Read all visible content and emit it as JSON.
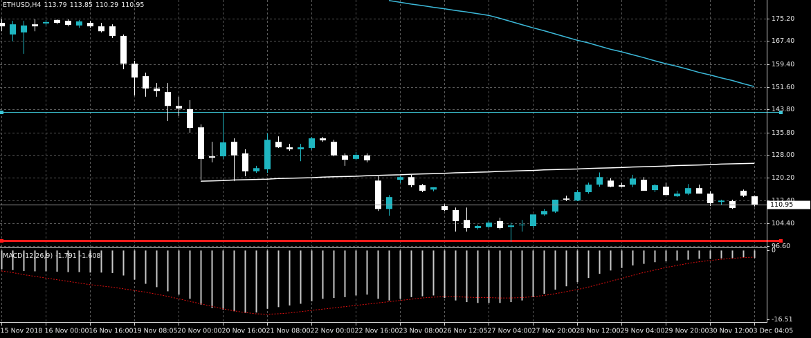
{
  "chart_data": [
    {
      "type": "candlestick",
      "title": "ETHUSD,H4",
      "categories": [
        "15 Nov 2018",
        null,
        null,
        null,
        "16 Nov 00:00",
        null,
        null,
        null,
        "16 Nov 16:00",
        null,
        null,
        null,
        "19 Nov 08:05",
        null,
        null,
        null,
        "20 Nov 00:00",
        null,
        null,
        null,
        "20 Nov 16:00",
        null,
        null,
        null,
        "21 Nov 08:00",
        null,
        null,
        null,
        "22 Nov 00:00",
        null,
        null,
        null,
        "22 Nov 16:00",
        null,
        null,
        null,
        "23 Nov 08:00",
        null,
        null,
        null,
        "26 Nov 12:05",
        null,
        null,
        null,
        "27 Nov 04:00",
        null,
        null,
        null,
        "27 Nov 20:00",
        null,
        null,
        null,
        "28 Nov 12:00",
        null,
        null,
        null,
        "29 Nov 04:00",
        null,
        null,
        null,
        "29 Nov 20:00",
        null,
        null,
        null,
        "30 Nov 12:00",
        null,
        null,
        null,
        "3 Dec 04:05"
      ],
      "open": [
        173.7,
        169.7,
        170.4,
        173.2,
        173.5,
        174.7,
        174.4,
        172.8,
        173.7,
        172.5,
        172.5,
        169.2,
        159.6,
        155.3,
        151.0,
        149.8,
        145.0,
        143.9,
        137.6,
        127.6,
        127.6,
        132.6,
        128.6,
        122.4,
        123.1,
        132.6,
        130.7,
        130.0,
        130.5,
        133.8,
        132.6,
        127.9,
        126.7,
        127.9,
        119.2,
        109.4,
        119.5,
        120.4,
        117.6,
        116.1,
        110.4,
        109.0,
        105.6,
        102.8,
        103.2,
        105.2,
        103.2,
        103.9,
        103.5,
        107.5,
        108.5,
        113.0,
        112.3,
        115.2,
        117.8,
        119.2,
        117.6,
        117.8,
        119.5,
        115.9,
        117.1,
        113.8,
        114.7,
        116.6,
        114.7,
        111.8,
        112.1,
        115.7,
        113.79
      ],
      "high": [
        174.9,
        174.4,
        174.4,
        174.9,
        174.7,
        174.9,
        174.9,
        174.7,
        174.4,
        173.7,
        173.2,
        169.7,
        160.6,
        156.5,
        152.9,
        152.9,
        148.2,
        147.0,
        138.6,
        132.6,
        142.7,
        133.8,
        130.0,
        124.3,
        135.5,
        134.5,
        131.9,
        131.9,
        134.3,
        134.3,
        133.3,
        128.6,
        129.1,
        128.6,
        120.7,
        114.2,
        120.7,
        121.2,
        118.0,
        116.9,
        111.1,
        109.9,
        109.9,
        104.0,
        105.2,
        106.4,
        104.7,
        105.6,
        107.5,
        109.4,
        112.6,
        114.0,
        115.9,
        118.5,
        122.0,
        120.0,
        118.5,
        121.2,
        120.4,
        118.0,
        118.5,
        115.7,
        118.0,
        117.8,
        115.5,
        112.6,
        112.6,
        116.1,
        113.85
      ],
      "low": [
        170.8,
        167.3,
        163.0,
        170.8,
        172.8,
        173.2,
        172.5,
        172.0,
        172.0,
        170.4,
        168.5,
        157.7,
        148.6,
        148.2,
        148.2,
        139.8,
        141.5,
        135.7,
        119.5,
        125.5,
        126.7,
        119.0,
        120.7,
        121.9,
        121.9,
        130.5,
        129.5,
        125.9,
        129.8,
        132.6,
        127.6,
        124.3,
        126.2,
        125.5,
        108.7,
        107.1,
        118.3,
        116.9,
        115.2,
        115.5,
        108.7,
        101.6,
        101.6,
        102.3,
        102.8,
        102.3,
        98.0,
        101.6,
        102.8,
        107.1,
        108.0,
        112.1,
        112.1,
        114.7,
        117.1,
        116.9,
        116.9,
        116.9,
        115.7,
        115.2,
        114.2,
        113.5,
        114.2,
        114.7,
        110.4,
        110.9,
        109.4,
        113.5,
        110.29
      ],
      "close": [
        172.5,
        173.2,
        172.8,
        172.5,
        174.0,
        173.7,
        173.0,
        174.2,
        172.5,
        170.8,
        169.2,
        159.6,
        154.8,
        151.0,
        150.1,
        145.0,
        144.1,
        137.4,
        126.7,
        127.1,
        132.4,
        127.9,
        122.4,
        123.5,
        133.3,
        130.7,
        130.0,
        130.7,
        133.8,
        133.1,
        127.9,
        126.4,
        128.1,
        126.2,
        109.4,
        113.5,
        120.4,
        117.6,
        115.7,
        116.9,
        109.0,
        105.2,
        102.8,
        103.5,
        104.7,
        102.8,
        103.7,
        104.0,
        107.5,
        108.7,
        112.6,
        112.6,
        115.2,
        117.8,
        120.4,
        117.1,
        117.1,
        119.9,
        115.7,
        117.6,
        114.2,
        114.7,
        116.6,
        114.7,
        111.4,
        112.3,
        109.7,
        114.0,
        110.95
      ],
      "up_color": "#1fb6c1",
      "down_color": "#ffffff",
      "series": [
        {
          "color": "#3cb8d8",
          "values": [
            null,
            null,
            null,
            null,
            null,
            null,
            null,
            null,
            null,
            null,
            null,
            null,
            null,
            null,
            null,
            null,
            null,
            null,
            null,
            null,
            null,
            null,
            null,
            null,
            null,
            null,
            null,
            null,
            null,
            null,
            null,
            null,
            null,
            null,
            null,
            181.4,
            180.8,
            180.2,
            179.7,
            179.1,
            178.6,
            178.0,
            177.5,
            176.9,
            176.3,
            175.3,
            174.2,
            173.1,
            172.0,
            171.0,
            169.9,
            168.8,
            167.7,
            166.8,
            165.7,
            164.6,
            163.7,
            162.7,
            161.7,
            160.6,
            159.6,
            158.7,
            157.7,
            156.6,
            155.7,
            154.7,
            153.8,
            152.7,
            151.7
          ]
        },
        {
          "color": "#ffffff",
          "values": [
            null,
            null,
            null,
            null,
            null,
            null,
            null,
            null,
            null,
            null,
            null,
            null,
            null,
            null,
            null,
            null,
            null,
            null,
            119.0,
            119.1,
            119.2,
            119.4,
            119.5,
            119.6,
            119.7,
            119.9,
            120.0,
            120.1,
            120.2,
            120.4,
            120.5,
            120.6,
            120.7,
            120.9,
            121.0,
            121.1,
            121.2,
            121.4,
            121.5,
            121.6,
            121.7,
            121.9,
            122.0,
            122.1,
            122.2,
            122.4,
            122.5,
            122.6,
            122.7,
            122.9,
            123.0,
            123.1,
            123.2,
            123.4,
            123.5,
            123.6,
            123.7,
            123.9,
            124.0,
            124.1,
            124.2,
            124.4,
            124.5,
            124.6,
            124.7,
            124.9,
            125.0,
            125.1,
            125.2
          ]
        }
      ],
      "hlines": [
        {
          "value": 142.9,
          "color": "#3cc6d6"
        },
        {
          "value": 98.5,
          "color": "#ff1a1a"
        }
      ],
      "ylim": [
        96.1,
        181.6
      ],
      "yticks": [
        {
          "value": 175.2,
          "label": "175.20"
        },
        {
          "value": 167.4,
          "label": "167.40"
        },
        {
          "value": 159.4,
          "label": "159.40"
        },
        {
          "value": 151.6,
          "label": "151.60"
        },
        {
          "value": 143.8,
          "label": "143.80"
        },
        {
          "value": 135.8,
          "label": "135.80"
        },
        {
          "value": 128,
          "label": "128.00"
        },
        {
          "value": 120.2,
          "label": "120.20"
        },
        {
          "value": 112.4,
          "label": "112.40"
        },
        {
          "value": 104.4,
          "label": "104.40"
        },
        {
          "value": 96.6,
          "label": "96.60"
        }
      ],
      "grid": true
    },
    {
      "type": "bar",
      "title": "MACD(12,26,9)",
      "series": [
        {
          "color": "#c8c8c8",
          "values": [
            -4.5,
            -4.7,
            -4.9,
            -5.0,
            -5.0,
            -5.1,
            -5.2,
            -5.2,
            -5.3,
            -5.3,
            -5.4,
            -6.0,
            -7.0,
            -8.0,
            -8.8,
            -9.8,
            -10.6,
            -11.6,
            -13.0,
            -13.8,
            -14.2,
            -14.6,
            -15.0,
            -14.9,
            -14.0,
            -13.6,
            -13.2,
            -12.8,
            -12.2,
            -11.6,
            -11.4,
            -11.2,
            -10.8,
            -10.6,
            -11.6,
            -12.0,
            -11.6,
            -11.2,
            -11.0,
            -10.8,
            -11.4,
            -12.0,
            -12.4,
            -12.6,
            -12.6,
            -12.6,
            -12.4,
            -12.0,
            -11.2,
            -10.4,
            -9.4,
            -8.6,
            -7.6,
            -6.6,
            -5.6,
            -4.8,
            -4.2,
            -3.6,
            -3.2,
            -2.8,
            -2.6,
            -2.4,
            -2.2,
            -2.0,
            -2.0,
            -1.9,
            -1.9,
            -1.7,
            -1.791
          ]
        },
        {
          "type": "line",
          "color": "#e01010",
          "values": [
            -4.9,
            -5.3,
            -5.8,
            -6.2,
            -6.6,
            -7.0,
            -7.4,
            -7.8,
            -8.2,
            -8.5,
            -8.8,
            -9.2,
            -9.6,
            -10.0,
            -10.5,
            -11.0,
            -11.6,
            -12.2,
            -12.8,
            -13.4,
            -14.0,
            -14.5,
            -14.9,
            -15.2,
            -15.3,
            -15.2,
            -15.0,
            -14.7,
            -14.4,
            -14.1,
            -13.8,
            -13.5,
            -13.2,
            -12.9,
            -12.6,
            -12.3,
            -12.0,
            -11.7,
            -11.4,
            -11.2,
            -11.1,
            -11.1,
            -11.2,
            -11.3,
            -11.3,
            -11.4,
            -11.4,
            -11.3,
            -11.1,
            -10.8,
            -10.4,
            -9.9,
            -9.4,
            -8.8,
            -8.1,
            -7.4,
            -6.7,
            -6.0,
            -5.3,
            -4.7,
            -4.1,
            -3.6,
            -3.1,
            -2.7,
            -2.4,
            -2.1,
            -1.9,
            -1.7,
            -1.608
          ]
        }
      ],
      "ylim": [
        -17.2,
        0.4
      ],
      "yticks": [
        0,
        -16.51
      ]
    }
  ]
}
